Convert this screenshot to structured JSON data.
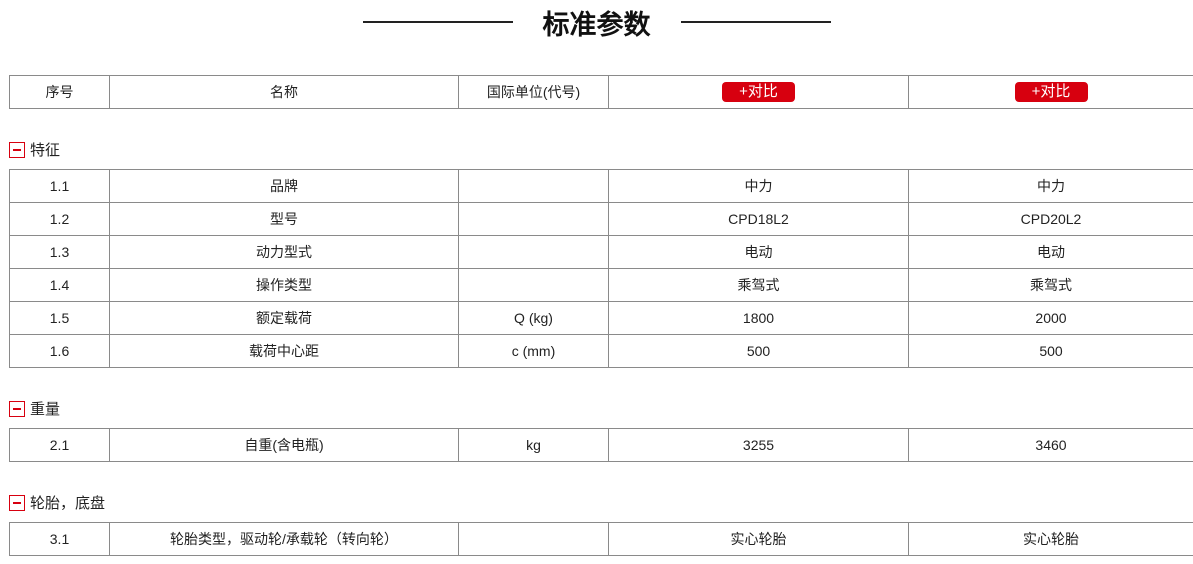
{
  "title": "标准参数",
  "header": {
    "cols": [
      "序号",
      "名称",
      "国际单位(代号)"
    ],
    "compare_label": "+对比"
  },
  "sections": [
    {
      "name": "特征",
      "rows": [
        [
          "1.1",
          "品牌",
          "",
          "中力",
          "中力"
        ],
        [
          "1.2",
          "型号",
          "",
          "CPD18L2",
          "CPD20L2"
        ],
        [
          "1.3",
          "动力型式",
          "",
          "电动",
          "电动"
        ],
        [
          "1.4",
          "操作类型",
          "",
          "乘驾式",
          "乘驾式"
        ],
        [
          "1.5",
          "额定载荷",
          "Q (kg)",
          "1800",
          "2000"
        ],
        [
          "1.6",
          "载荷中心距",
          "c (mm)",
          "500",
          "500"
        ]
      ]
    },
    {
      "name": "重量",
      "rows": [
        [
          "2.1",
          "自重(含电瓶)",
          "kg",
          "3255",
          "3460"
        ]
      ]
    },
    {
      "name": "轮胎，底盘",
      "rows": [
        [
          "3.1",
          "轮胎类型，驱动轮/承载轮（转向轮）",
          "",
          "实心轮胎",
          "实心轮胎"
        ]
      ]
    }
  ],
  "colors": {
    "accent": "#d7000f",
    "border": "#8a8a8a"
  }
}
